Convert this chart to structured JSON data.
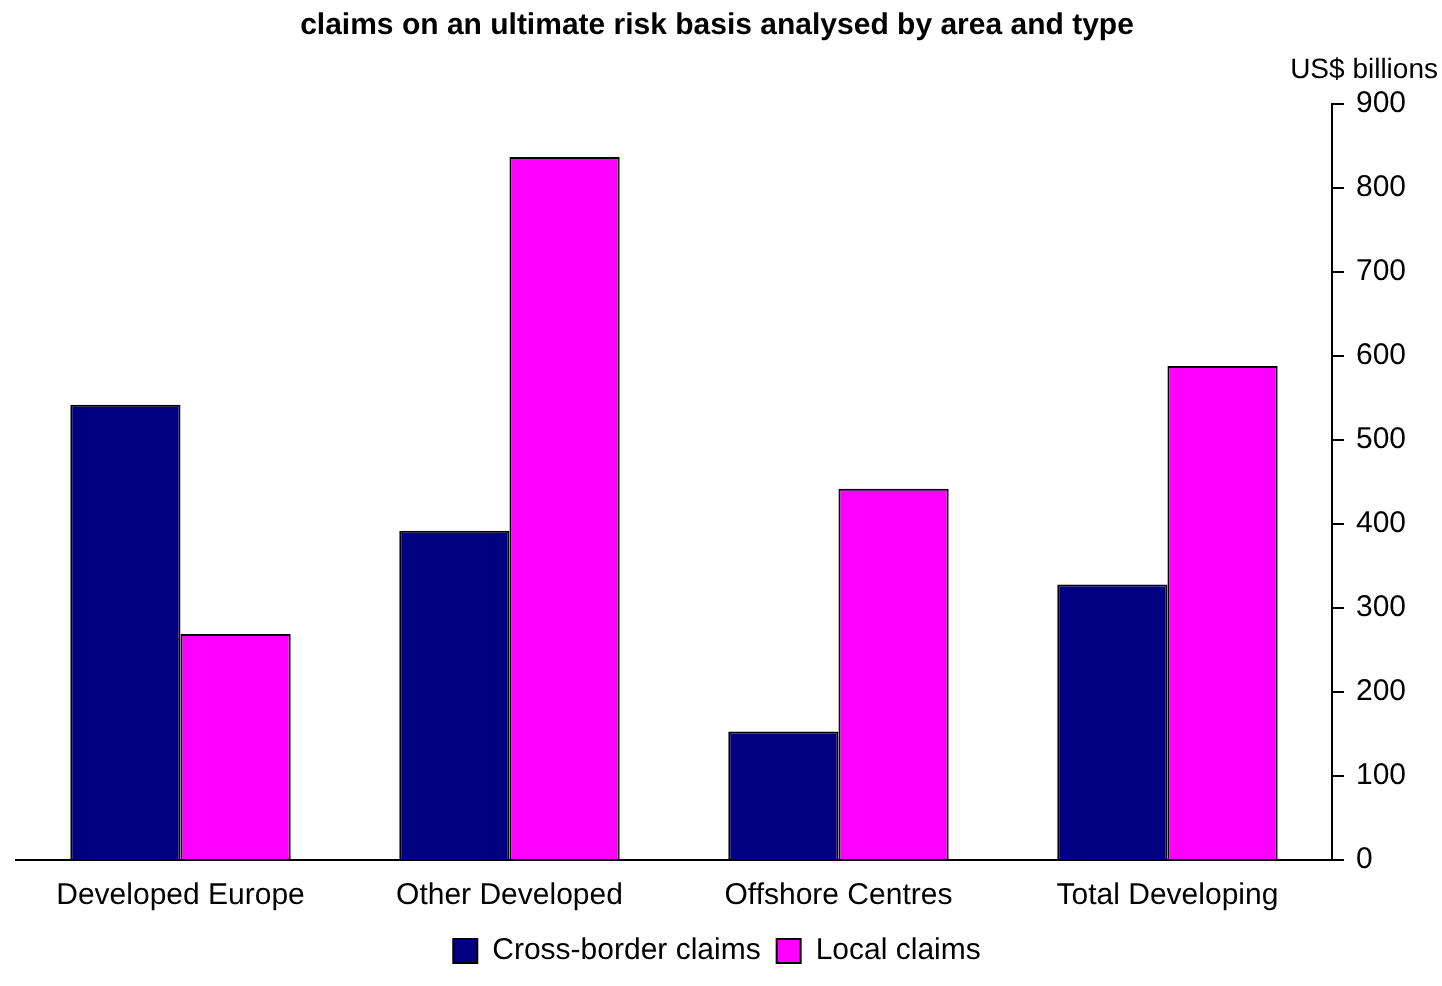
{
  "chart_data": {
    "type": "bar",
    "title": "claims on an ultimate risk basis analysed by area and type",
    "ylabel": "US$ billions",
    "categories": [
      "Developed Europe",
      "Other Developed",
      "Offshore Centres",
      "Total Developing"
    ],
    "series": [
      {
        "name": "Cross-border claims",
        "color": "#000080",
        "values": [
          542,
          392,
          153,
          328
        ]
      },
      {
        "name": "Local claims",
        "color": "#ff00ff",
        "values": [
          269,
          837,
          442,
          588
        ]
      }
    ],
    "ylim": [
      0,
      900
    ],
    "yticks": [
      0,
      100,
      200,
      300,
      400,
      500,
      600,
      700,
      800,
      900
    ],
    "grid": false,
    "legend": "bottom"
  }
}
